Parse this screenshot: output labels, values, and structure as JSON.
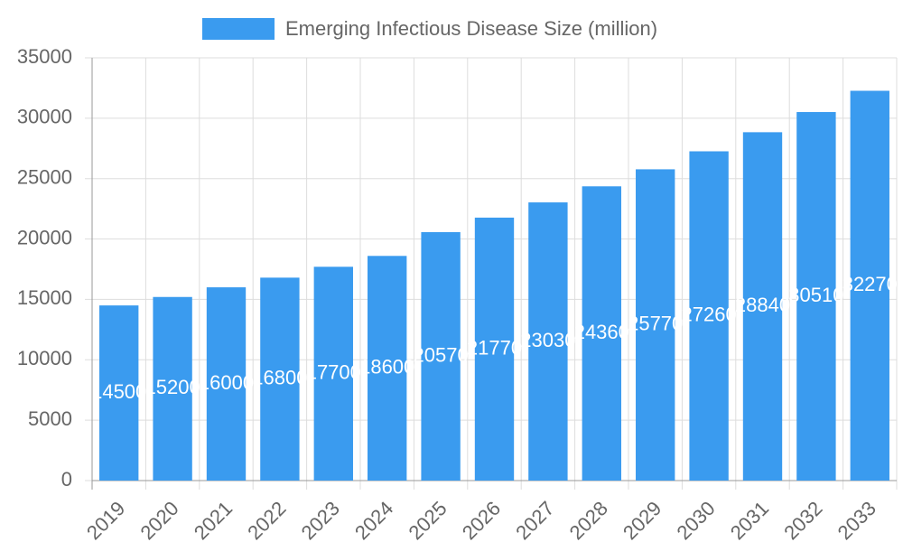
{
  "chart_data": {
    "type": "bar",
    "legend_label": "Emerging Infectious Disease Size (million)",
    "categories": [
      "2019",
      "2020",
      "2021",
      "2022",
      "2023",
      "2024",
      "2025",
      "2026",
      "2027",
      "2028",
      "2029",
      "2030",
      "2031",
      "2032",
      "2033"
    ],
    "values": [
      14500,
      15200,
      16000,
      16800,
      17700,
      18600,
      20570,
      21770,
      23030,
      24360,
      25770,
      27260,
      28840,
      30510,
      32270
    ],
    "color": "#3a9bef",
    "ylim": [
      0,
      35000
    ],
    "yticks": [
      0,
      5000,
      10000,
      15000,
      20000,
      25000,
      30000,
      35000
    ],
    "grid": true
  }
}
